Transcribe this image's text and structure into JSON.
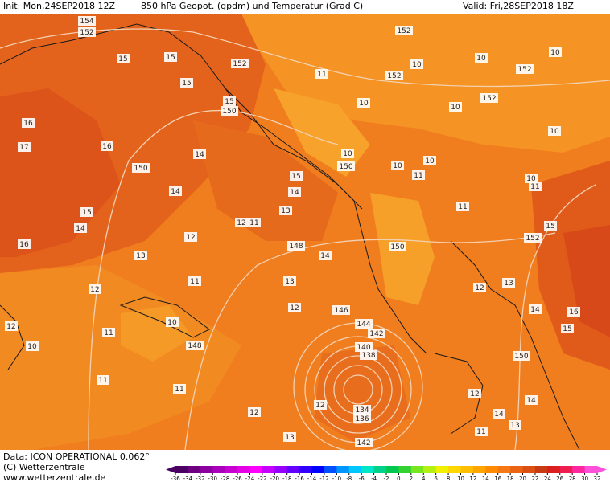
{
  "header": {
    "init": "Init: Mon,24SEP2018 12Z",
    "title": "850 hPa Geopot. (gpdm) und Temperatur (Grad C)",
    "valid": "Valid: Fri,28SEP2018 18Z"
  },
  "footer": {
    "source": "Data: ICON OPERATIONAL 0.062°",
    "copyright": "(C) Wetterzentrale",
    "website": "www.wetterzentrale.de"
  },
  "contour_labels": [
    "154",
    "152",
    "15",
    "15",
    "15",
    "15",
    "150",
    "14",
    "16",
    "17",
    "16",
    "150",
    "14",
    "15",
    "14",
    "16",
    "13",
    "12",
    "12",
    "11",
    "148",
    "15",
    "14",
    "13",
    "14",
    "13",
    "12",
    "146",
    "144",
    "142",
    "140",
    "138",
    "134",
    "136",
    "142",
    "150",
    "152",
    "15",
    "14",
    "16",
    "15",
    "11",
    "11",
    "10",
    "10",
    "10",
    "150",
    "152",
    "152",
    "152",
    "152",
    "152",
    "10",
    "10",
    "10",
    "10",
    "11",
    "10",
    "10",
    "11",
    "10",
    "150",
    "12",
    "13",
    "10",
    "148",
    "11",
    "11",
    "12",
    "11",
    "12",
    "10",
    "11",
    "12",
    "14",
    "14",
    "13",
    "12",
    "13",
    "12",
    "11"
  ],
  "colorbar": {
    "ticks": [
      -36,
      -34,
      -32,
      -30,
      -28,
      -26,
      -24,
      -22,
      -20,
      -18,
      -16,
      -14,
      -12,
      -10,
      -8,
      -6,
      -4,
      -2,
      0,
      2,
      4,
      6,
      8,
      10,
      12,
      14,
      16,
      18,
      20,
      22,
      24,
      26,
      28,
      30,
      32
    ],
    "colors": [
      "#4b0064",
      "#6e0082",
      "#8c00a0",
      "#aa00be",
      "#c800d2",
      "#e600e6",
      "#ff00ff",
      "#c800ff",
      "#9600ff",
      "#6400ff",
      "#3200ff",
      "#0000ff",
      "#0050ff",
      "#0096ff",
      "#00c8ff",
      "#00e6c8",
      "#00d28c",
      "#00c850",
      "#32d232",
      "#78e61e",
      "#b4f014",
      "#f0f000",
      "#ffd700",
      "#ffbe00",
      "#ffa500",
      "#ff8c00",
      "#f57814",
      "#eb6414",
      "#dc5014",
      "#c83c14",
      "#dc1e1e",
      "#f01e50",
      "#ff28a0",
      "#ff50dc"
    ]
  }
}
